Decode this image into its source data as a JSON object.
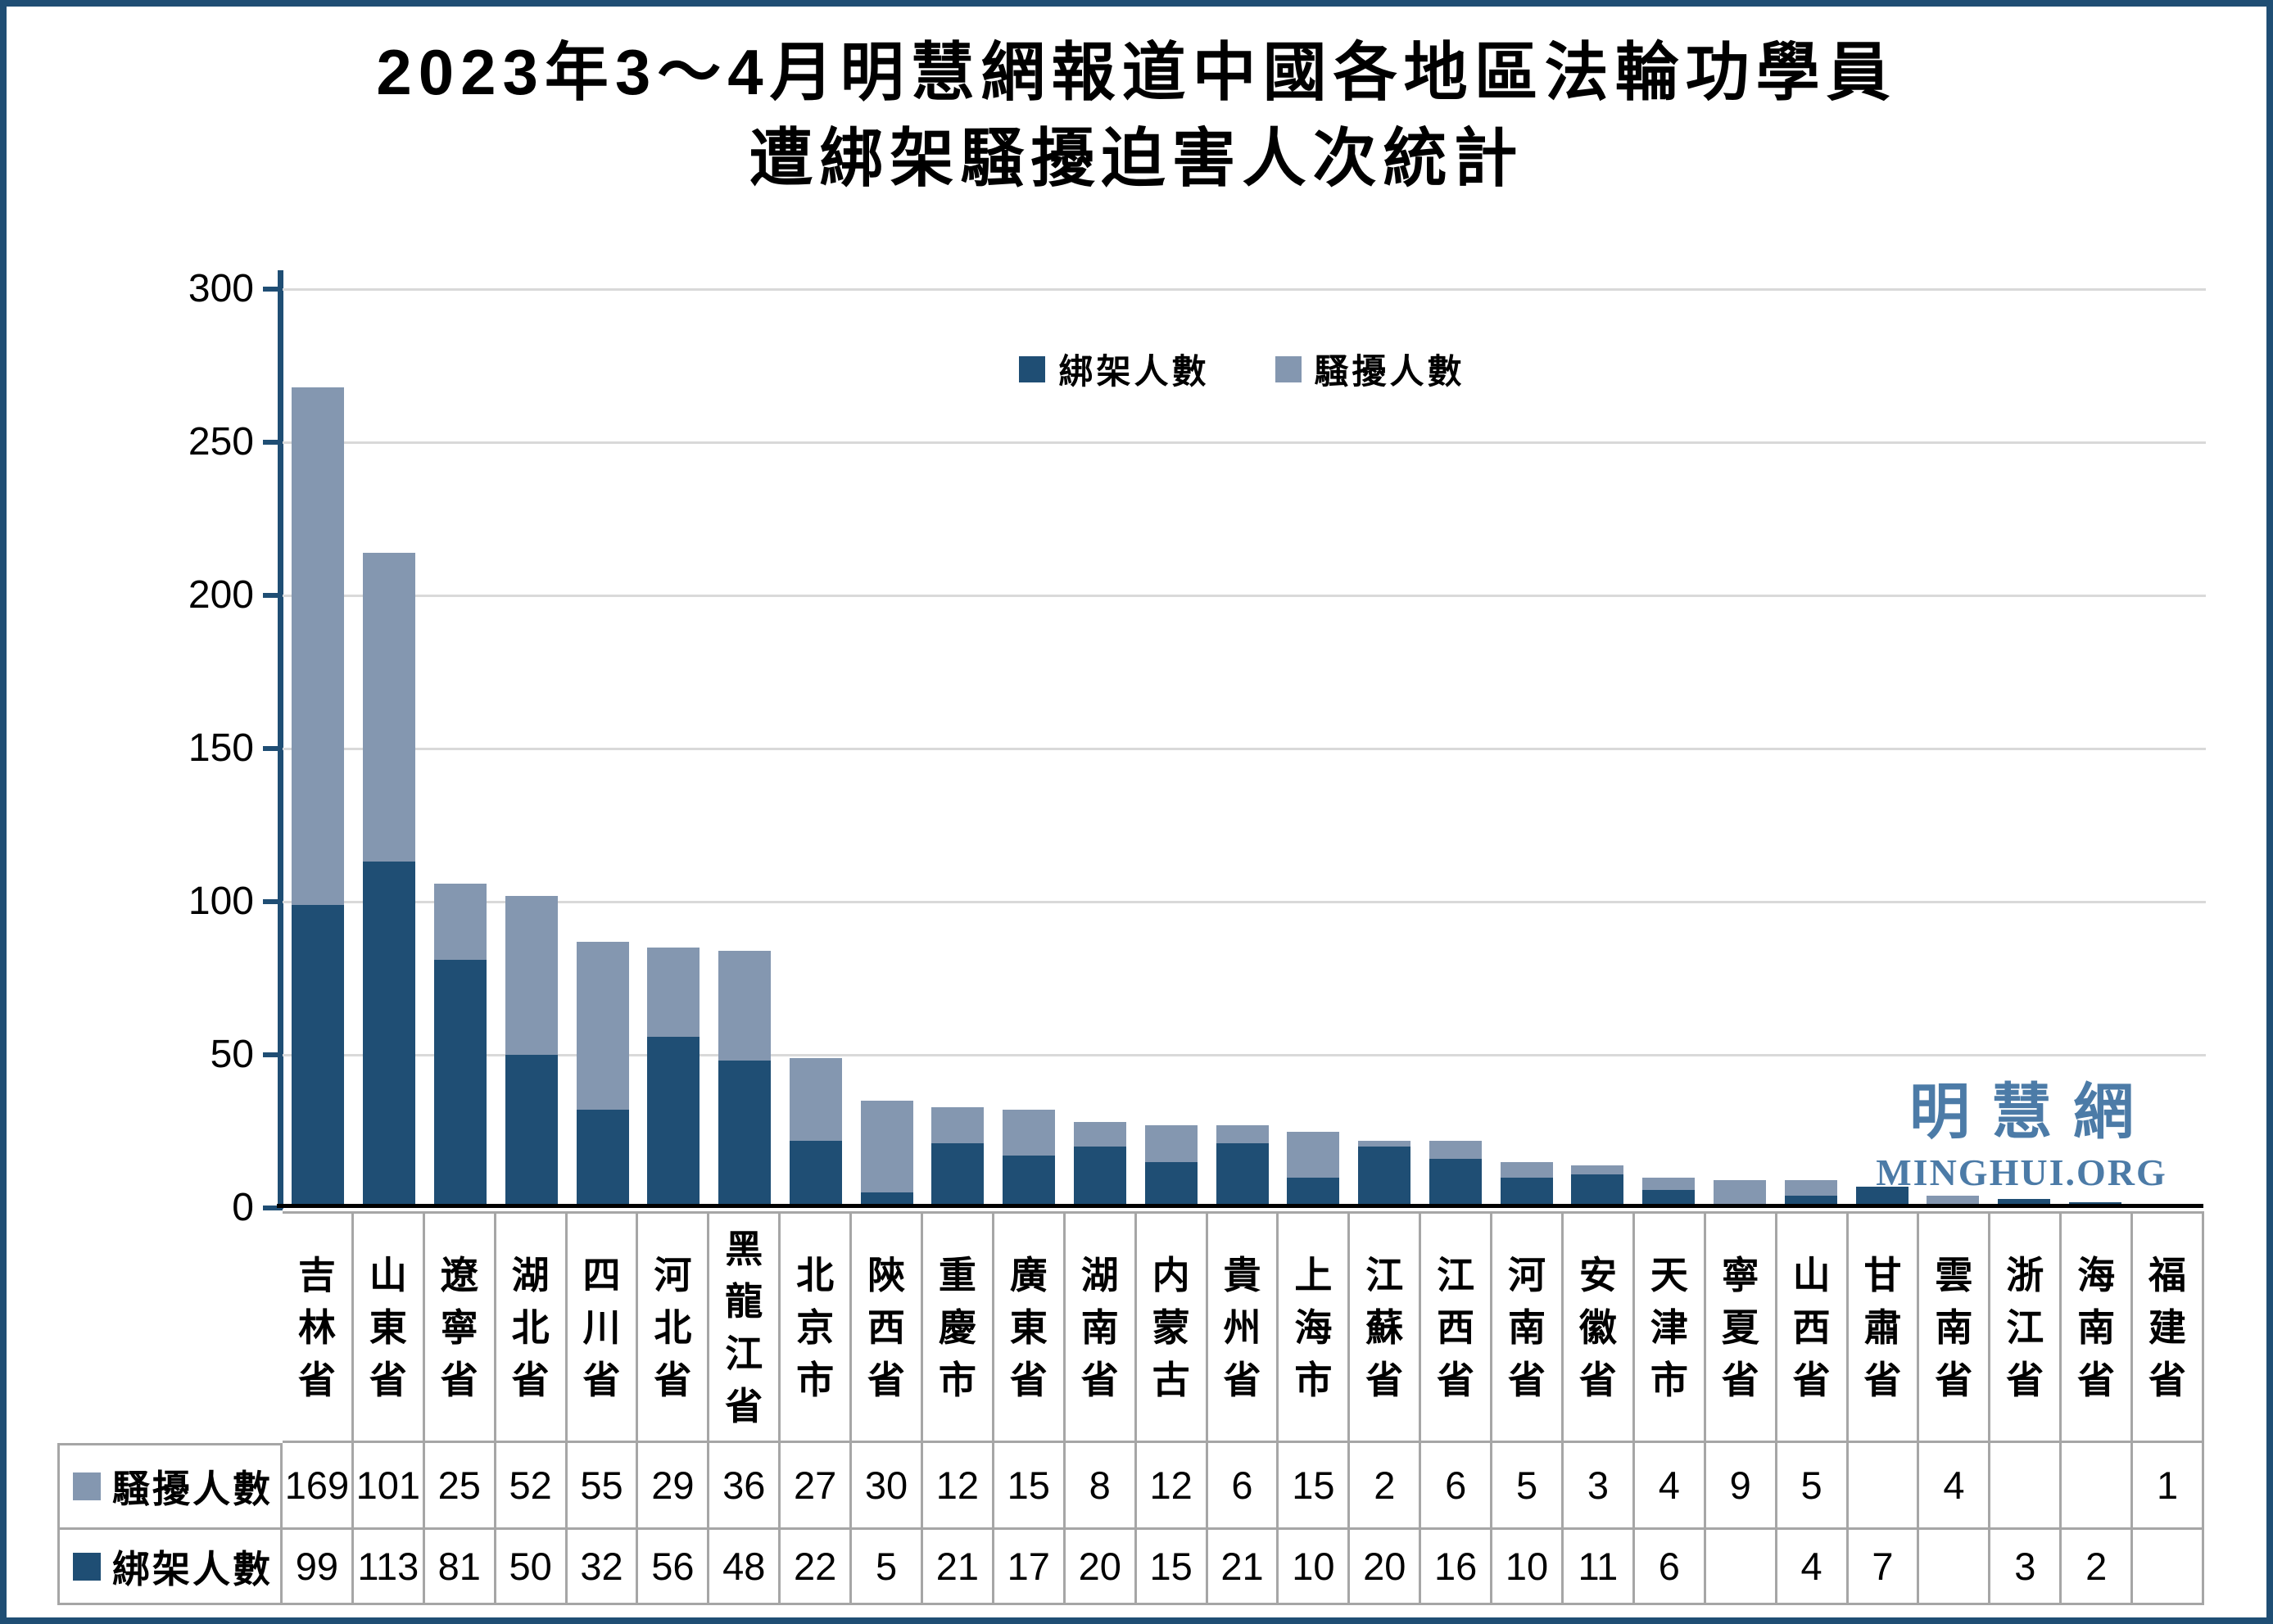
{
  "title": {
    "line1": "2023年3～4月明慧網報道中國各地區法輪功學員",
    "line2": "遭綁架騷擾迫害人次統計"
  },
  "legend": {
    "items": [
      {
        "label": "綁架人數",
        "color": "#1F4E74"
      },
      {
        "label": "騷擾人數",
        "color": "#8497B0"
      }
    ]
  },
  "watermark": {
    "cjk": "明慧網",
    "latin": "MINGHUI.ORG",
    "color": "#4C7BA7"
  },
  "colors": {
    "kidnap_series": "#1F4E74",
    "harass_series": "#8497B0",
    "frame_border": "#1F4E74",
    "gridline": "#D9D9D9",
    "table_grid": "#A6A6A6",
    "axis_line": "#1F4E74",
    "x_axis": "#000000"
  },
  "chart_data": {
    "type": "bar",
    "stacked": true,
    "title": "2023年3～4月明慧網報道中國各地區法輪功學員遭綁架騷擾迫害人次統計",
    "xlabel": "",
    "ylabel": "",
    "ylim": [
      0,
      300
    ],
    "yticks": [
      0,
      50,
      100,
      150,
      200,
      250,
      300
    ],
    "grid": true,
    "legend_position": "top-center",
    "categories": [
      "吉林省",
      "山東省",
      "遼寧省",
      "湖北省",
      "四川省",
      "河北省",
      "黑龍江省",
      "北京市",
      "陝西省",
      "重慶市",
      "廣東省",
      "湖南省",
      "内蒙古",
      "貴州省",
      "上海市",
      "江蘇省",
      "江西省",
      "河南省",
      "安徽省",
      "天津市",
      "寧夏省",
      "山西省",
      "甘肅省",
      "雲南省",
      "浙江省",
      "海南省",
      "福建省"
    ],
    "series": [
      {
        "name": "綁架人數",
        "color": "#1F4E74",
        "values": [
          99,
          113,
          81,
          50,
          32,
          56,
          48,
          22,
          5,
          21,
          17,
          20,
          15,
          21,
          10,
          20,
          16,
          10,
          11,
          6,
          null,
          4,
          7,
          null,
          3,
          2,
          null
        ]
      },
      {
        "name": "騷擾人數",
        "color": "#8497B0",
        "values": [
          169,
          101,
          25,
          52,
          55,
          29,
          36,
          27,
          30,
          12,
          15,
          8,
          12,
          6,
          15,
          2,
          6,
          5,
          3,
          4,
          9,
          5,
          null,
          4,
          null,
          null,
          1
        ]
      }
    ]
  },
  "table": {
    "rows": [
      {
        "label": "騷擾人數",
        "color": "#8497B0",
        "values": [
          "169",
          "101",
          "25",
          "52",
          "55",
          "29",
          "36",
          "27",
          "30",
          "12",
          "15",
          "8",
          "12",
          "6",
          "15",
          "2",
          "6",
          "5",
          "3",
          "4",
          "9",
          "5",
          "",
          "4",
          "",
          "",
          "1"
        ]
      },
      {
        "label": "綁架人數",
        "color": "#1F4E74",
        "values": [
          "99",
          "113",
          "81",
          "50",
          "32",
          "56",
          "48",
          "22",
          "5",
          "21",
          "17",
          "20",
          "15",
          "21",
          "10",
          "20",
          "16",
          "10",
          "11",
          "6",
          "",
          "4",
          "7",
          "",
          "3",
          "2",
          ""
        ]
      }
    ]
  }
}
